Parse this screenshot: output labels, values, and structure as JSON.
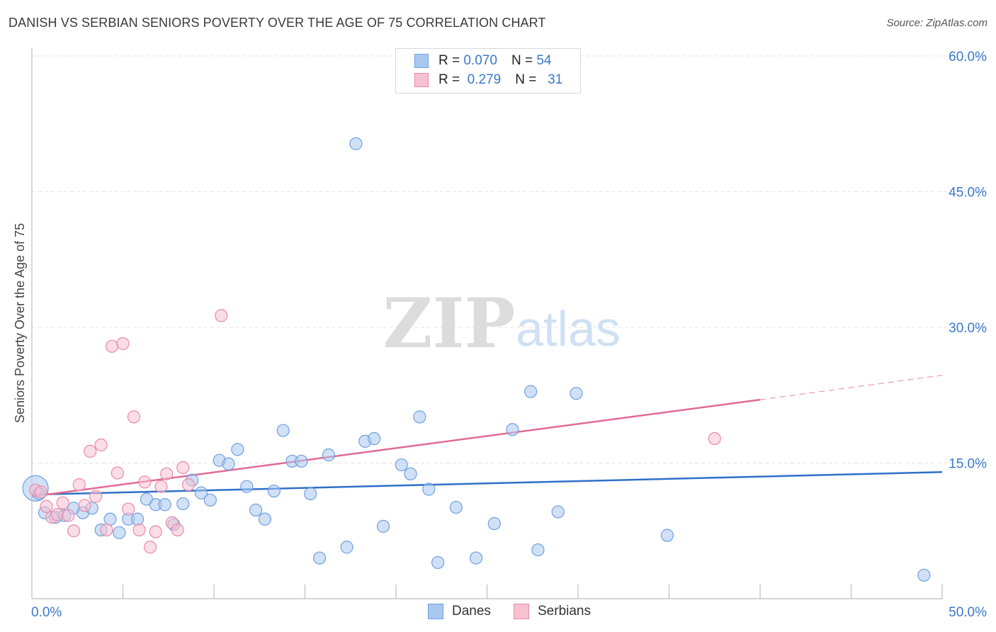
{
  "title": "DANISH VS SERBIAN SENIORS POVERTY OVER THE AGE OF 75 CORRELATION CHART",
  "source": "Source: ZipAtlas.com",
  "watermark": {
    "zip": "ZIP",
    "atlas": "atlas"
  },
  "legend": {
    "rows": [
      {
        "r_label": "R =",
        "r_value": "0.070",
        "n_label": "N =",
        "n_value": "54",
        "color": "#a9c8f0",
        "border": "#6f9fe0"
      },
      {
        "r_label": "R =",
        "r_value": "0.279",
        "n_label": "N =",
        "n_value": "31",
        "color": "#f7c1d1",
        "border": "#e88aa8"
      }
    ]
  },
  "bottom_legend": [
    {
      "label": "Danes",
      "color": "#a9c8f0",
      "border": "#6f9fe0"
    },
    {
      "label": "Serbians",
      "color": "#f7c1d1",
      "border": "#e88aa8"
    }
  ],
  "chart_data": {
    "type": "scatter",
    "ylabel": "Seniors Poverty Over the Age of 75",
    "xlim": [
      0,
      50
    ],
    "ylim": [
      0,
      60
    ],
    "x_tick_labels": [
      "0.0%",
      "50.0%"
    ],
    "y_ticks": [
      15,
      30,
      45,
      60
    ],
    "y_tick_labels": [
      "15.0%",
      "30.0%",
      "45.0%",
      "60.0%"
    ],
    "grid": true,
    "series": [
      {
        "name": "Danes",
        "color": "#6f9fe0",
        "fill": "#a9c8f0",
        "trend": {
          "x": [
            0,
            50
          ],
          "y": [
            11.5,
            14.0
          ],
          "color": "#2f6fc8"
        },
        "points": [
          [
            0.2,
            12.2
          ],
          [
            0.4,
            11.6
          ],
          [
            0.7,
            9.5
          ],
          [
            1.3,
            9.0
          ],
          [
            1.8,
            9.2
          ],
          [
            2.3,
            10.0
          ],
          [
            2.8,
            9.5
          ],
          [
            3.3,
            10.0
          ],
          [
            3.8,
            7.6
          ],
          [
            4.3,
            8.8
          ],
          [
            4.8,
            7.3
          ],
          [
            5.3,
            8.8
          ],
          [
            5.8,
            8.8
          ],
          [
            6.3,
            11.0
          ],
          [
            6.8,
            10.4
          ],
          [
            7.3,
            10.4
          ],
          [
            7.8,
            8.2
          ],
          [
            8.3,
            10.5
          ],
          [
            8.8,
            13.1
          ],
          [
            9.3,
            11.7
          ],
          [
            9.8,
            10.9
          ],
          [
            10.3,
            15.3
          ],
          [
            10.8,
            14.9
          ],
          [
            11.3,
            16.5
          ],
          [
            11.8,
            12.4
          ],
          [
            12.3,
            9.8
          ],
          [
            12.8,
            8.8
          ],
          [
            13.3,
            11.9
          ],
          [
            13.8,
            18.6
          ],
          [
            14.3,
            15.2
          ],
          [
            14.8,
            15.2
          ],
          [
            15.3,
            11.6
          ],
          [
            15.8,
            4.5
          ],
          [
            16.3,
            15.9
          ],
          [
            17.3,
            5.7
          ],
          [
            17.8,
            50.3
          ],
          [
            18.3,
            17.4
          ],
          [
            18.8,
            17.7
          ],
          [
            19.3,
            8.0
          ],
          [
            20.3,
            14.8
          ],
          [
            20.8,
            13.8
          ],
          [
            21.3,
            20.1
          ],
          [
            21.8,
            12.1
          ],
          [
            22.3,
            4.0
          ],
          [
            23.3,
            10.1
          ],
          [
            24.4,
            4.5
          ],
          [
            25.4,
            8.3
          ],
          [
            26.4,
            18.7
          ],
          [
            27.4,
            22.9
          ],
          [
            27.8,
            5.4
          ],
          [
            28.9,
            9.6
          ],
          [
            29.9,
            22.7
          ],
          [
            34.9,
            7.0
          ],
          [
            49.0,
            2.6
          ]
        ]
      },
      {
        "name": "Serbians",
        "color": "#e88aa8",
        "fill": "#f7c1d1",
        "trend": {
          "x": [
            0,
            40
          ],
          "y": [
            11.3,
            22.0
          ],
          "color": "#e06a95"
        },
        "trend_dashed": {
          "x": [
            40,
            50
          ],
          "y": [
            22.0,
            24.7
          ]
        },
        "points": [
          [
            0.2,
            12.0
          ],
          [
            0.5,
            11.8
          ],
          [
            0.8,
            10.2
          ],
          [
            1.1,
            9.0
          ],
          [
            1.4,
            9.3
          ],
          [
            1.7,
            10.6
          ],
          [
            2.0,
            9.2
          ],
          [
            2.3,
            7.5
          ],
          [
            2.6,
            12.6
          ],
          [
            2.9,
            10.3
          ],
          [
            3.2,
            16.3
          ],
          [
            3.5,
            11.3
          ],
          [
            3.8,
            17.0
          ],
          [
            4.1,
            7.6
          ],
          [
            4.4,
            27.9
          ],
          [
            4.7,
            13.9
          ],
          [
            5.0,
            28.2
          ],
          [
            5.3,
            9.9
          ],
          [
            5.6,
            20.1
          ],
          [
            5.9,
            7.6
          ],
          [
            6.2,
            12.9
          ],
          [
            6.5,
            5.7
          ],
          [
            6.8,
            7.4
          ],
          [
            7.1,
            12.4
          ],
          [
            7.4,
            13.8
          ],
          [
            7.7,
            8.4
          ],
          [
            8.0,
            7.6
          ],
          [
            8.3,
            14.5
          ],
          [
            8.6,
            12.6
          ],
          [
            10.4,
            31.3
          ],
          [
            37.5,
            17.7
          ]
        ]
      }
    ]
  }
}
